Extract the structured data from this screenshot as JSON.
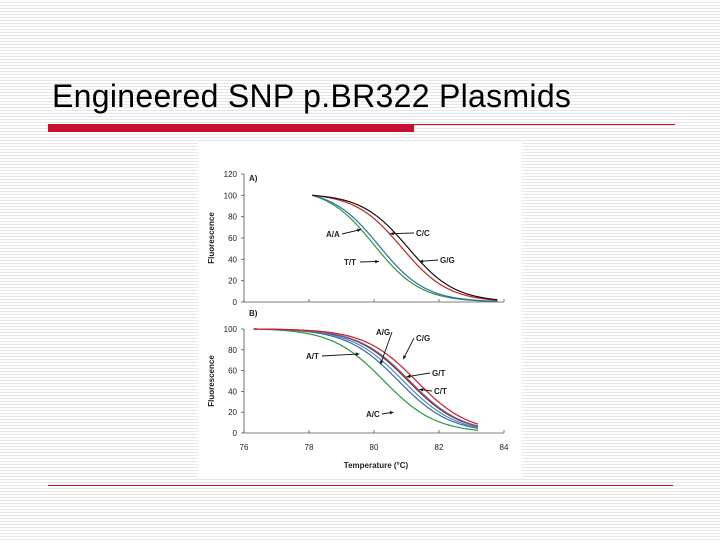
{
  "slide": {
    "title": "Engineered SNP p.BR322 Plasmids"
  },
  "chart_data": [
    {
      "type": "line",
      "panel_label": "A)",
      "ylabel": "Fluorescence",
      "xlim": [
        76,
        84
      ],
      "ylim": [
        0,
        120
      ],
      "y_ticks": [
        0,
        20,
        40,
        60,
        80,
        100,
        120
      ],
      "grid": false,
      "series": [
        {
          "name": "A/A",
          "color": "#2a9a3a",
          "tm": 80.0,
          "k": 0.72
        },
        {
          "name": "T/T",
          "color": "#2a6fb5",
          "tm": 80.15,
          "k": 0.72
        },
        {
          "name": "C/C",
          "color": "#d02020",
          "tm": 80.85,
          "k": 0.72
        },
        {
          "name": "G/G",
          "color": "#111111",
          "tm": 81.05,
          "k": 0.72
        }
      ],
      "annotations": [
        "A/A",
        "T/T",
        "C/C",
        "G/G"
      ]
    },
    {
      "type": "line",
      "panel_label": "B)",
      "ylabel": "Fluorescence",
      "xlabel": "Temperature (°C)",
      "xlim": [
        76,
        84
      ],
      "ylim": [
        0,
        100
      ],
      "y_ticks": [
        0,
        20,
        40,
        60,
        80,
        100
      ],
      "x_ticks": [
        76,
        78,
        80,
        82,
        84
      ],
      "grid": false,
      "series": [
        {
          "name": "A/C",
          "color": "#2a9a3a",
          "tm": 80.3,
          "k": 0.8
        },
        {
          "name": "A/T",
          "color": "#2a6fb5",
          "tm": 80.75,
          "k": 0.8
        },
        {
          "name": "G/T",
          "color": "#5a86c8",
          "tm": 80.9,
          "k": 0.8
        },
        {
          "name": "A/G",
          "color": "#8c2020",
          "tm": 81.05,
          "k": 0.8
        },
        {
          "name": "C/T",
          "color": "#6a6a9a",
          "tm": 81.1,
          "k": 0.8
        },
        {
          "name": "C/G",
          "color": "#d02020",
          "tm": 81.3,
          "k": 0.8
        }
      ],
      "annotations": [
        "A/G",
        "C/G",
        "A/T",
        "G/T",
        "C/T",
        "A/C"
      ]
    }
  ]
}
